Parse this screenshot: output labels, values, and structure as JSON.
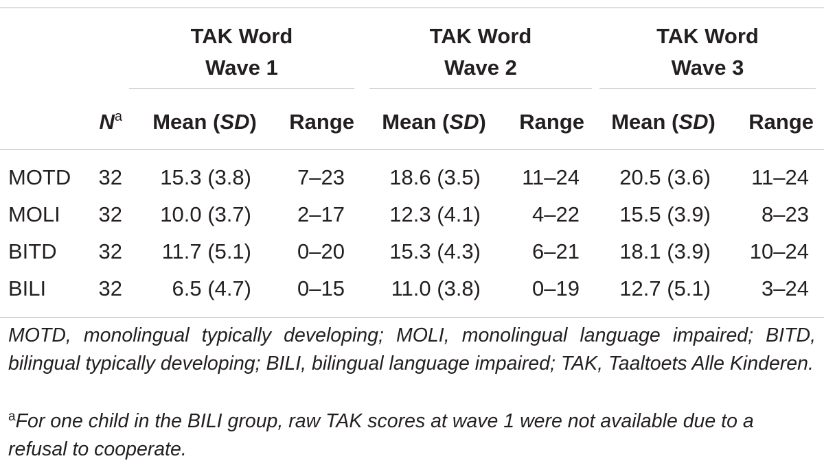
{
  "table": {
    "groups": [
      {
        "line1": "TAK Word",
        "line2": "Wave 1"
      },
      {
        "line1": "TAK Word",
        "line2": "Wave 2"
      },
      {
        "line1": "TAK Word",
        "line2": "Wave 3"
      }
    ],
    "header": {
      "n_label": "N",
      "n_sup": "a",
      "mean_prefix": "Mean (",
      "mean_sd": "SD",
      "mean_suffix": ")",
      "range": "Range"
    },
    "rows": [
      {
        "label": "MOTD",
        "n": "32",
        "cells": [
          "15.3 (3.8)",
          "7–23",
          "18.6 (3.5)",
          "11–24",
          "20.5 (3.6)",
          "11–24"
        ]
      },
      {
        "label": "MOLI",
        "n": "32",
        "cells": [
          "10.0 (3.7)",
          "2–17",
          "12.3 (4.1)",
          "4–22",
          "15.5 (3.9)",
          "8–23"
        ]
      },
      {
        "label": "BITD",
        "n": "32",
        "cells": [
          "11.7 (5.1)",
          "0–20",
          "15.3 (4.3)",
          "6–21",
          "18.1 (3.9)",
          "10–24"
        ]
      },
      {
        "label": "BILI",
        "n": "32",
        "cells": [
          "6.5 (4.7)",
          "0–15",
          "11.0 (3.8)",
          "0–19",
          "12.7 (5.1)",
          "3–24"
        ]
      }
    ]
  },
  "footnotes": {
    "abbreviations": "MOTD, monolingual typically developing; MOLI, monolingual language impaired; BITD, bilingual typically developing; BILI, bilingual language impaired; TAK, Taaltoets Alle Kinderen.",
    "a_mark": "a",
    "a_text": "For one child in the BILI group, raw TAK scores at wave 1 were not available due to a refusal to cooperate."
  }
}
